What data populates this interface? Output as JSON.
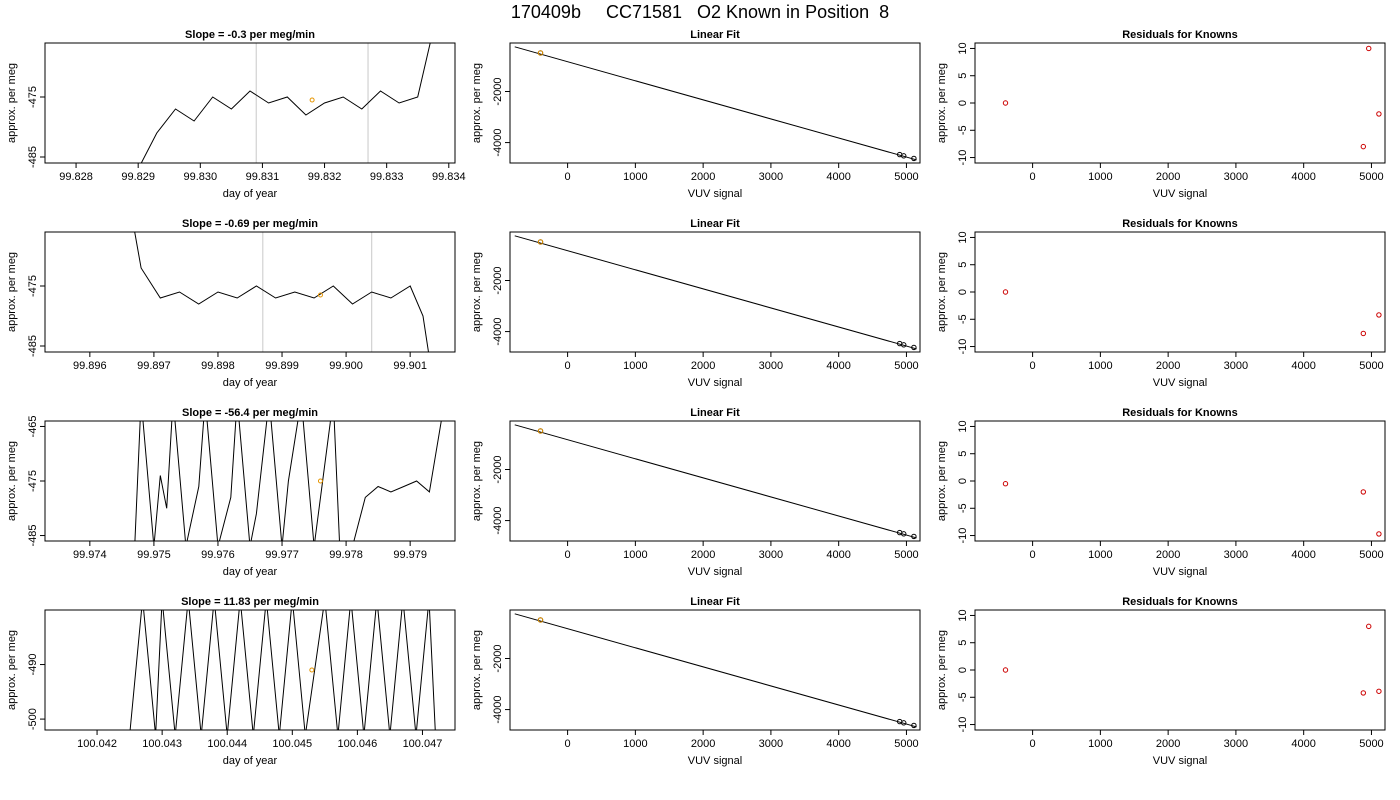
{
  "figure": {
    "title": "170409b     CC71581   O2 Known in Position  8"
  },
  "chart_data": [
    {
      "type": "line",
      "title": "Slope =  -0.3  per meg/min",
      "xlabel": "day of year",
      "ylabel": "approx. per meg",
      "xlim": [
        99.8275,
        99.8341
      ],
      "ylim": [
        -486,
        -466
      ],
      "xticks": [
        "99.828",
        "99.829",
        "99.830",
        "99.831",
        "99.832",
        "99.833",
        "99.834"
      ],
      "yticks": [
        "-475",
        "-485"
      ],
      "vlines": [
        99.8309,
        99.8327
      ],
      "marker": {
        "x": 99.8318,
        "y": -475.5
      },
      "x": [
        99.829,
        99.8293,
        99.8296,
        99.8299,
        99.8302,
        99.8305,
        99.8308,
        99.8311,
        99.8314,
        99.8317,
        99.832,
        99.8323,
        99.8326,
        99.8329,
        99.8332,
        99.8335,
        99.8337
      ],
      "y": [
        -487,
        -481,
        -477,
        -479,
        -475,
        -477,
        -474,
        -476,
        -475,
        -478,
        -476,
        -475,
        -477,
        -474,
        -476,
        -475,
        -466
      ]
    },
    {
      "type": "scatter_fit",
      "title": "Linear Fit",
      "xlabel": "VUV signal",
      "ylabel": "approx. per meg",
      "xlim": [
        -850,
        5200
      ],
      "ylim": [
        -4800,
        -100
      ],
      "xticks": [
        "0",
        "1000",
        "2000",
        "3000",
        "4000",
        "5000"
      ],
      "yticks": [
        "-2000",
        "-4000"
      ],
      "points": [
        {
          "x": -400,
          "y": -490
        },
        {
          "x": 4900,
          "y": -4470
        },
        {
          "x": 4960,
          "y": -4520
        },
        {
          "x": 5110,
          "y": -4620
        }
      ],
      "highlight": {
        "x": -400,
        "y": -490
      },
      "fit": {
        "x0": -780,
        "y0": -250,
        "x1": 5150,
        "y1": -4680
      }
    },
    {
      "type": "scatter",
      "title": "Residuals for Knowns",
      "xlabel": "VUV signal",
      "ylabel": "approx. per meg",
      "xlim": [
        -850,
        5200
      ],
      "ylim": [
        -11,
        11
      ],
      "xticks": [
        "0",
        "1000",
        "2000",
        "3000",
        "4000",
        "5000"
      ],
      "yticks": [
        "10",
        "5",
        "0",
        "-5",
        "-10"
      ],
      "points": [
        {
          "x": -400,
          "y": 0
        },
        {
          "x": 4880,
          "y": -8
        },
        {
          "x": 4960,
          "y": 10
        },
        {
          "x": 5110,
          "y": -2
        }
      ]
    },
    {
      "type": "line",
      "title": "Slope =  -0.69  per meg/min",
      "xlabel": "day of year",
      "ylabel": "approx. per meg",
      "xlim": [
        99.8953,
        99.9017
      ],
      "ylim": [
        -486,
        -466
      ],
      "xticks": [
        "99.896",
        "99.897",
        "99.898",
        "99.899",
        "99.900",
        "99.901"
      ],
      "yticks": [
        "-475",
        "-485"
      ],
      "vlines": [
        99.8987,
        99.9004
      ],
      "marker": {
        "x": 99.8996,
        "y": -476.5
      },
      "x": [
        99.8967,
        99.8968,
        99.8971,
        99.8974,
        99.8977,
        99.898,
        99.8983,
        99.8986,
        99.8989,
        99.8992,
        99.8995,
        99.8998,
        99.9001,
        99.9004,
        99.9007,
        99.901,
        99.9012,
        99.9013
      ],
      "y": [
        -466,
        -472,
        -477,
        -476,
        -478,
        -476,
        -477,
        -475,
        -477,
        -476,
        -477,
        -475,
        -478,
        -476,
        -477,
        -475,
        -480,
        -487
      ]
    },
    {
      "type": "scatter_fit",
      "title": "Linear Fit",
      "xlabel": "VUV signal",
      "ylabel": "approx. per meg",
      "xlim": [
        -850,
        5200
      ],
      "ylim": [
        -4800,
        -100
      ],
      "xticks": [
        "0",
        "1000",
        "2000",
        "3000",
        "4000",
        "5000"
      ],
      "yticks": [
        "-2000",
        "-4000"
      ],
      "points": [
        {
          "x": -400,
          "y": -490
        },
        {
          "x": 4900,
          "y": -4470
        },
        {
          "x": 4960,
          "y": -4520
        },
        {
          "x": 5110,
          "y": -4620
        }
      ],
      "highlight": {
        "x": -400,
        "y": -490
      },
      "fit": {
        "x0": -780,
        "y0": -250,
        "x1": 5150,
        "y1": -4680
      }
    },
    {
      "type": "scatter",
      "title": "Residuals for Knowns",
      "xlabel": "VUV signal",
      "ylabel": "approx. per meg",
      "xlim": [
        -850,
        5200
      ],
      "ylim": [
        -11,
        11
      ],
      "xticks": [
        "0",
        "1000",
        "2000",
        "3000",
        "4000",
        "5000"
      ],
      "yticks": [
        "10",
        "5",
        "0",
        "-5",
        "-10"
      ],
      "points": [
        {
          "x": -400,
          "y": 0
        },
        {
          "x": 4880,
          "y": -7.6
        },
        {
          "x": 5110,
          "y": -4.2
        }
      ]
    },
    {
      "type": "line",
      "title": "Slope =  -56.4  per meg/min",
      "xlabel": "day of year",
      "ylabel": "approx. per meg",
      "xlim": [
        99.9733,
        99.9797
      ],
      "ylim": [
        -486,
        -464
      ],
      "xticks": [
        "99.974",
        "99.975",
        "99.976",
        "99.977",
        "99.978",
        "99.979"
      ],
      "yticks": [
        "-465",
        "-475",
        "-485"
      ],
      "vlines": [],
      "marker": {
        "x": 99.9776,
        "y": -475
      },
      "x": [
        99.9747,
        99.9748,
        99.975,
        99.9751,
        99.9752,
        99.9753,
        99.9755,
        99.9757,
        99.9758,
        99.976,
        99.9762,
        99.9763,
        99.9765,
        99.9766,
        99.9768,
        99.977,
        99.9771,
        99.9773,
        99.9775,
        99.9778,
        99.9779,
        99.9781,
        99.9783,
        99.9785,
        99.9787,
        99.9789,
        99.9791,
        99.9793,
        99.9794,
        99.9795
      ],
      "y": [
        -487,
        -460,
        -487,
        -474,
        -480,
        -460,
        -487,
        -476,
        -460,
        -487,
        -478,
        -460,
        -487,
        -481,
        -460,
        -487,
        -475,
        -460,
        -487,
        -460,
        -487,
        -487,
        -478,
        -476,
        -477,
        -476,
        -475,
        -477,
        -470,
        -463
      ]
    },
    {
      "type": "scatter_fit",
      "title": "Linear Fit",
      "xlabel": "VUV signal",
      "ylabel": "approx. per meg",
      "xlim": [
        -850,
        5200
      ],
      "ylim": [
        -4800,
        -100
      ],
      "xticks": [
        "0",
        "1000",
        "2000",
        "3000",
        "4000",
        "5000"
      ],
      "yticks": [
        "-2000",
        "-4000"
      ],
      "points": [
        {
          "x": -400,
          "y": -490
        },
        {
          "x": 4900,
          "y": -4470
        },
        {
          "x": 4960,
          "y": -4520
        },
        {
          "x": 5110,
          "y": -4620
        }
      ],
      "highlight": {
        "x": -400,
        "y": -490
      },
      "fit": {
        "x0": -780,
        "y0": -250,
        "x1": 5150,
        "y1": -4680
      }
    },
    {
      "type": "scatter",
      "title": "Residuals for Knowns",
      "xlabel": "VUV signal",
      "ylabel": "approx. per meg",
      "xlim": [
        -850,
        5200
      ],
      "ylim": [
        -11,
        11
      ],
      "xticks": [
        "0",
        "1000",
        "2000",
        "3000",
        "4000",
        "5000"
      ],
      "yticks": [
        "10",
        "5",
        "0",
        "-5",
        "-10"
      ],
      "points": [
        {
          "x": -400,
          "y": -0.5
        },
        {
          "x": 4880,
          "y": -2
        },
        {
          "x": 5110,
          "y": -9.7
        }
      ]
    },
    {
      "type": "line",
      "title": "Slope =  11.83  per meg/min",
      "xlabel": "day of year",
      "ylabel": "approx. per meg",
      "xlim": [
        100.0412,
        100.0475
      ],
      "ylim": [
        -502,
        -480
      ],
      "xticks": [
        "100.042",
        "100.043",
        "100.044",
        "100.045",
        "100.046",
        "100.047"
      ],
      "yticks": [
        "-490",
        "-500"
      ],
      "vlines": [],
      "marker": {
        "x": 100.0453,
        "y": -491
      },
      "x": [
        100.0425,
        100.0427,
        100.0429,
        100.043,
        100.0432,
        100.0434,
        100.0436,
        100.0438,
        100.044,
        100.0442,
        100.0444,
        100.0446,
        100.0448,
        100.045,
        100.0452,
        100.0455,
        100.0457,
        100.0459,
        100.0461,
        100.0463,
        100.0465,
        100.0467,
        100.0469,
        100.0471,
        100.0472
      ],
      "y": [
        -503,
        -478,
        -503,
        -478,
        -503,
        -478,
        -503,
        -478,
        -503,
        -478,
        -503,
        -478,
        -503,
        -478,
        -503,
        -478,
        -503,
        -478,
        -503,
        -478,
        -503,
        -478,
        -503,
        -478,
        -503
      ]
    },
    {
      "type": "scatter_fit",
      "title": "Linear Fit",
      "xlabel": "VUV signal",
      "ylabel": "approx. per meg",
      "xlim": [
        -850,
        5200
      ],
      "ylim": [
        -4800,
        -100
      ],
      "xticks": [
        "0",
        "1000",
        "2000",
        "3000",
        "4000",
        "5000"
      ],
      "yticks": [
        "-2000",
        "-4000"
      ],
      "points": [
        {
          "x": -400,
          "y": -490
        },
        {
          "x": 4900,
          "y": -4470
        },
        {
          "x": 4960,
          "y": -4520
        },
        {
          "x": 5110,
          "y": -4620
        }
      ],
      "highlight": {
        "x": -400,
        "y": -490
      },
      "fit": {
        "x0": -780,
        "y0": -250,
        "x1": 5150,
        "y1": -4680
      }
    },
    {
      "type": "scatter",
      "title": "Residuals for Knowns",
      "xlabel": "VUV signal",
      "ylabel": "approx. per meg",
      "xlim": [
        -850,
        5200
      ],
      "ylim": [
        -11,
        11
      ],
      "xticks": [
        "0",
        "1000",
        "2000",
        "3000",
        "4000",
        "5000"
      ],
      "yticks": [
        "10",
        "5",
        "0",
        "-5",
        "-10"
      ],
      "points": [
        {
          "x": -400,
          "y": 0
        },
        {
          "x": 4880,
          "y": -4.2
        },
        {
          "x": 4960,
          "y": 8
        },
        {
          "x": 5110,
          "y": -3.9
        }
      ]
    }
  ]
}
